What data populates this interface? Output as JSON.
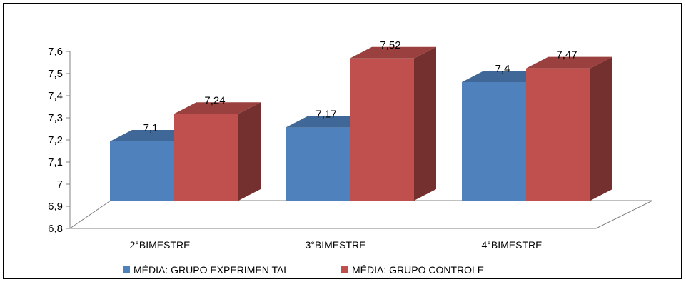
{
  "chart_data": {
    "type": "bar",
    "categories": [
      "2°BIMESTRE",
      "3°BIMESTRE",
      "4°BIMESTRE"
    ],
    "series": [
      {
        "name": "MÉDIA: GRUPO EXPERIMEN TAL",
        "values": [
          7.1,
          7.17,
          7.4
        ],
        "labels": [
          "7,1",
          "7,17",
          "7,4"
        ],
        "color": "#4F81BD"
      },
      {
        "name": "MÉDIA: GRUPO CONTROLE",
        "values": [
          7.24,
          7.52,
          7.47
        ],
        "labels": [
          "7,24",
          "7,52",
          "7,47"
        ],
        "color": "#C0504D"
      }
    ],
    "ylim": [
      6.8,
      7.6
    ],
    "ticks": [
      6.8,
      6.9,
      7.0,
      7.1,
      7.2,
      7.3,
      7.4,
      7.5,
      7.6
    ],
    "tick_labels": [
      "6,8",
      "6,9",
      "7",
      "7,1",
      "7,2",
      "7,3",
      "7,4",
      "7,5",
      "7,6"
    ],
    "grid": false,
    "legend_position": "bottom",
    "style": "3d-clustered-bar"
  }
}
